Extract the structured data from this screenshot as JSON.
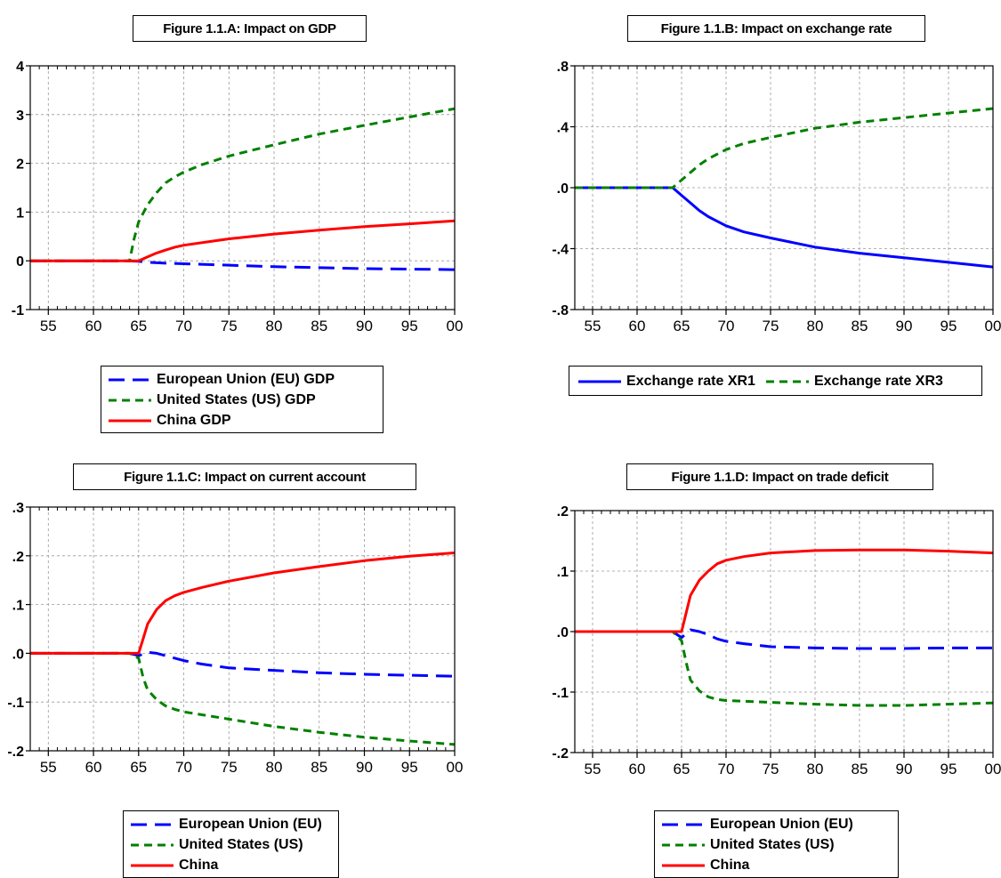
{
  "chart_data": [
    {
      "type": "line",
      "title": "Figure 1.1.A: Impact on GDP",
      "xlabel": "",
      "ylabel": "",
      "xlim": [
        1953,
        2000
      ],
      "ylim": [
        -1,
        4
      ],
      "x_ticks": [
        1955,
        1960,
        1965,
        1970,
        1975,
        1980,
        1985,
        1990,
        1995,
        2000
      ],
      "x_tick_labels": [
        "55",
        "60",
        "65",
        "70",
        "75",
        "80",
        "85",
        "90",
        "95",
        "00"
      ],
      "y_ticks": [
        -1,
        0,
        1,
        2,
        3,
        4
      ],
      "y_tick_labels": [
        "-1",
        "0",
        "1",
        "2",
        "3",
        "4"
      ],
      "grid": true,
      "legend_placement": "below",
      "legend_layout": "vertical",
      "series": [
        {
          "name": "European Union (EU) GDP",
          "color": "#0000ff",
          "dash": "long-dash",
          "points": [
            [
              1953,
              0
            ],
            [
              1964,
              0
            ],
            [
              1965,
              -0.01
            ],
            [
              1966,
              -0.03
            ],
            [
              1968,
              -0.05
            ],
            [
              1970,
              -0.06
            ],
            [
              1975,
              -0.09
            ],
            [
              1980,
              -0.12
            ],
            [
              1985,
              -0.14
            ],
            [
              1990,
              -0.16
            ],
            [
              1995,
              -0.17
            ],
            [
              2000,
              -0.18
            ]
          ]
        },
        {
          "name": "United States (US) GDP",
          "color": "#008000",
          "dash": "short-dash",
          "points": [
            [
              1953,
              0
            ],
            [
              1964,
              0
            ],
            [
              1964.5,
              0.45
            ],
            [
              1965,
              0.8
            ],
            [
              1966,
              1.15
            ],
            [
              1967,
              1.4
            ],
            [
              1968,
              1.6
            ],
            [
              1969,
              1.72
            ],
            [
              1970,
              1.82
            ],
            [
              1972,
              1.97
            ],
            [
              1975,
              2.15
            ],
            [
              1980,
              2.38
            ],
            [
              1985,
              2.6
            ],
            [
              1990,
              2.78
            ],
            [
              1995,
              2.95
            ],
            [
              2000,
              3.12
            ]
          ]
        },
        {
          "name": "China GDP",
          "color": "#ff0000",
          "dash": "solid",
          "points": [
            [
              1953,
              0
            ],
            [
              1965,
              0
            ],
            [
              1966,
              0.08
            ],
            [
              1967,
              0.16
            ],
            [
              1968,
              0.22
            ],
            [
              1969,
              0.28
            ],
            [
              1970,
              0.32
            ],
            [
              1975,
              0.45
            ],
            [
              1980,
              0.55
            ],
            [
              1985,
              0.63
            ],
            [
              1990,
              0.7
            ],
            [
              1995,
              0.76
            ],
            [
              2000,
              0.82
            ]
          ]
        }
      ]
    },
    {
      "type": "line",
      "title": "Figure 1.1.B: Impact on exchange rate",
      "xlabel": "",
      "ylabel": "",
      "xlim": [
        1953,
        2000
      ],
      "ylim": [
        -0.8,
        0.8
      ],
      "x_ticks": [
        1955,
        1960,
        1965,
        1970,
        1975,
        1980,
        1985,
        1990,
        1995,
        2000
      ],
      "x_tick_labels": [
        "55",
        "60",
        "65",
        "70",
        "75",
        "80",
        "85",
        "90",
        "95",
        "00"
      ],
      "y_ticks": [
        -0.8,
        -0.4,
        0,
        0.4,
        0.8
      ],
      "y_tick_labels": [
        "-.8",
        "-.4",
        ".0",
        ".4",
        ".8"
      ],
      "grid": true,
      "legend_placement": "below",
      "legend_layout": "horizontal",
      "series": [
        {
          "name": "Exchange rate XR1",
          "color": "#0000ff",
          "dash": "solid",
          "points": [
            [
              1953,
              0
            ],
            [
              1964,
              0
            ],
            [
              1965,
              -0.05
            ],
            [
              1966,
              -0.1
            ],
            [
              1967,
              -0.15
            ],
            [
              1968,
              -0.19
            ],
            [
              1969,
              -0.22
            ],
            [
              1970,
              -0.25
            ],
            [
              1972,
              -0.29
            ],
            [
              1975,
              -0.33
            ],
            [
              1980,
              -0.39
            ],
            [
              1985,
              -0.43
            ],
            [
              1990,
              -0.46
            ],
            [
              1995,
              -0.49
            ],
            [
              2000,
              -0.52
            ]
          ]
        },
        {
          "name": "Exchange rate XR3",
          "color": "#008000",
          "dash": "short-dash",
          "points": [
            [
              1953,
              0
            ],
            [
              1964,
              0
            ],
            [
              1965,
              0.05
            ],
            [
              1966,
              0.1
            ],
            [
              1967,
              0.15
            ],
            [
              1968,
              0.19
            ],
            [
              1969,
              0.22
            ],
            [
              1970,
              0.25
            ],
            [
              1972,
              0.29
            ],
            [
              1975,
              0.33
            ],
            [
              1980,
              0.39
            ],
            [
              1985,
              0.43
            ],
            [
              1990,
              0.46
            ],
            [
              1995,
              0.49
            ],
            [
              2000,
              0.52
            ]
          ]
        }
      ]
    },
    {
      "type": "line",
      "title": "Figure 1.1.C: Impact on current account",
      "xlabel": "",
      "ylabel": "",
      "xlim": [
        1953,
        2000
      ],
      "ylim": [
        -0.2,
        0.3
      ],
      "x_ticks": [
        1955,
        1960,
        1965,
        1970,
        1975,
        1980,
        1985,
        1990,
        1995,
        2000
      ],
      "x_tick_labels": [
        "55",
        "60",
        "65",
        "70",
        "75",
        "80",
        "85",
        "90",
        "95",
        "00"
      ],
      "y_ticks": [
        -0.2,
        -0.1,
        0,
        0.1,
        0.2,
        0.3
      ],
      "y_tick_labels": [
        "-.2",
        "-.1",
        ".0",
        ".1",
        ".2",
        ".3"
      ],
      "grid": true,
      "legend_placement": "below",
      "legend_layout": "vertical",
      "series": [
        {
          "name": "European Union (EU)",
          "color": "#0000ff",
          "dash": "long-dash",
          "points": [
            [
              1953,
              0
            ],
            [
              1964,
              0
            ],
            [
              1965,
              -0.005
            ],
            [
              1966,
              0.002
            ],
            [
              1967,
              0
            ],
            [
              1968,
              -0.005
            ],
            [
              1970,
              -0.015
            ],
            [
              1972,
              -0.022
            ],
            [
              1975,
              -0.03
            ],
            [
              1980,
              -0.035
            ],
            [
              1985,
              -0.04
            ],
            [
              1990,
              -0.043
            ],
            [
              1995,
              -0.045
            ],
            [
              2000,
              -0.047
            ]
          ]
        },
        {
          "name": "United States (US)",
          "color": "#008000",
          "dash": "short-dash",
          "points": [
            [
              1953,
              0
            ],
            [
              1964,
              0
            ],
            [
              1965,
              -0.01
            ],
            [
              1965.5,
              -0.05
            ],
            [
              1966,
              -0.075
            ],
            [
              1967,
              -0.095
            ],
            [
              1968,
              -0.108
            ],
            [
              1969,
              -0.115
            ],
            [
              1970,
              -0.12
            ],
            [
              1975,
              -0.135
            ],
            [
              1980,
              -0.15
            ],
            [
              1985,
              -0.162
            ],
            [
              1990,
              -0.172
            ],
            [
              1995,
              -0.18
            ],
            [
              2000,
              -0.187
            ]
          ]
        },
        {
          "name": "China",
          "color": "#ff0000",
          "dash": "solid",
          "points": [
            [
              1953,
              0
            ],
            [
              1965,
              0
            ],
            [
              1965.5,
              0.03
            ],
            [
              1966,
              0.06
            ],
            [
              1967,
              0.09
            ],
            [
              1968,
              0.108
            ],
            [
              1969,
              0.118
            ],
            [
              1970,
              0.125
            ],
            [
              1972,
              0.135
            ],
            [
              1975,
              0.148
            ],
            [
              1980,
              0.165
            ],
            [
              1985,
              0.178
            ],
            [
              1990,
              0.19
            ],
            [
              1995,
              0.199
            ],
            [
              2000,
              0.206
            ]
          ]
        }
      ]
    },
    {
      "type": "line",
      "title": "Figure 1.1.D: Impact on trade deficit",
      "xlabel": "",
      "ylabel": "",
      "xlim": [
        1953,
        2000
      ],
      "ylim": [
        -0.2,
        0.2
      ],
      "x_ticks": [
        1955,
        1960,
        1965,
        1970,
        1975,
        1980,
        1985,
        1990,
        1995,
        2000
      ],
      "x_tick_labels": [
        "55",
        "60",
        "65",
        "70",
        "75",
        "80",
        "85",
        "90",
        "95",
        "00"
      ],
      "y_ticks": [
        -0.2,
        -0.1,
        0,
        0.1,
        0.2
      ],
      "y_tick_labels": [
        "-.2",
        "-.1",
        ".0",
        ".1",
        ".2"
      ],
      "grid": true,
      "legend_placement": "below",
      "legend_layout": "vertical",
      "series": [
        {
          "name": "European Union (EU)",
          "color": "#0000ff",
          "dash": "long-dash",
          "points": [
            [
              1953,
              0
            ],
            [
              1964,
              0
            ],
            [
              1965,
              -0.01
            ],
            [
              1966,
              0.003
            ],
            [
              1967,
              0
            ],
            [
              1968,
              -0.005
            ],
            [
              1969,
              -0.012
            ],
            [
              1970,
              -0.016
            ],
            [
              1972,
              -0.02
            ],
            [
              1975,
              -0.025
            ],
            [
              1980,
              -0.027
            ],
            [
              1985,
              -0.028
            ],
            [
              1990,
              -0.028
            ],
            [
              1995,
              -0.027
            ],
            [
              2000,
              -0.027
            ]
          ]
        },
        {
          "name": "United States (US)",
          "color": "#008000",
          "dash": "short-dash",
          "points": [
            [
              1953,
              0
            ],
            [
              1964,
              0
            ],
            [
              1965,
              -0.015
            ],
            [
              1965.5,
              -0.05
            ],
            [
              1966,
              -0.08
            ],
            [
              1967,
              -0.098
            ],
            [
              1968,
              -0.108
            ],
            [
              1969,
              -0.112
            ],
            [
              1970,
              -0.114
            ],
            [
              1975,
              -0.117
            ],
            [
              1980,
              -0.12
            ],
            [
              1985,
              -0.122
            ],
            [
              1990,
              -0.122
            ],
            [
              1995,
              -0.12
            ],
            [
              2000,
              -0.118
            ]
          ]
        },
        {
          "name": "China",
          "color": "#ff0000",
          "dash": "solid",
          "points": [
            [
              1953,
              0
            ],
            [
              1965,
              0
            ],
            [
              1965.5,
              0.03
            ],
            [
              1966,
              0.06
            ],
            [
              1967,
              0.085
            ],
            [
              1968,
              0.1
            ],
            [
              1969,
              0.112
            ],
            [
              1970,
              0.118
            ],
            [
              1972,
              0.124
            ],
            [
              1975,
              0.13
            ],
            [
              1980,
              0.134
            ],
            [
              1985,
              0.135
            ],
            [
              1990,
              0.135
            ],
            [
              1995,
              0.133
            ],
            [
              2000,
              0.13
            ]
          ]
        }
      ]
    }
  ]
}
